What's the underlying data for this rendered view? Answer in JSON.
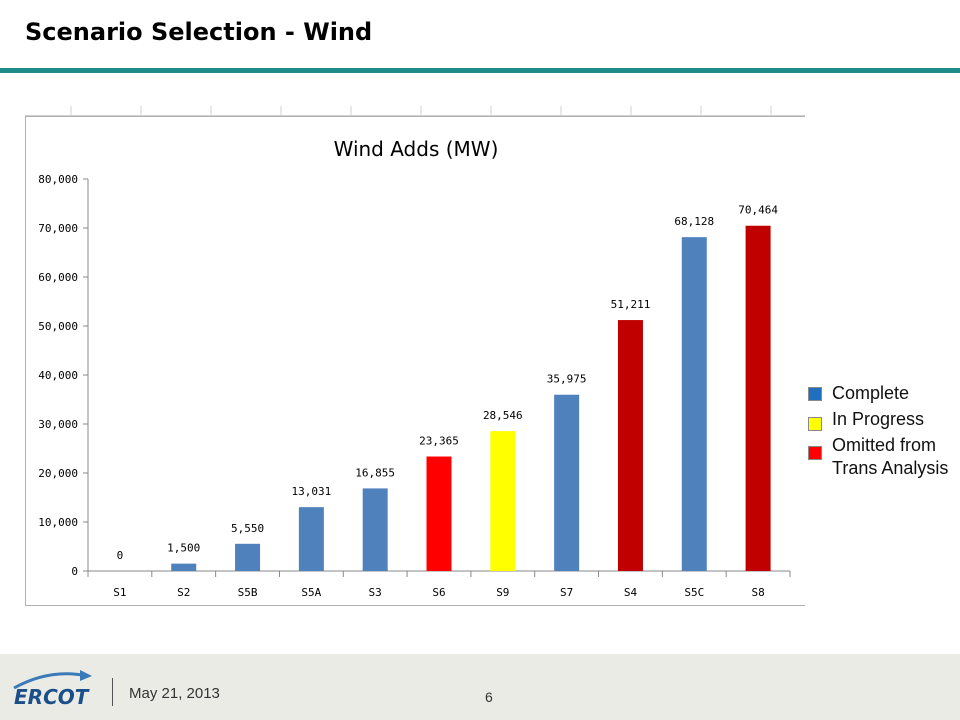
{
  "slide": {
    "title": "Scenario Selection - Wind",
    "date": "May 21, 2013",
    "page_number": "6",
    "logo_text": "ERCOT",
    "accent_color": "#1f8c8c"
  },
  "legend": {
    "items": [
      {
        "label": "Complete",
        "color": "#1f6fc0"
      },
      {
        "label": "In Progress",
        "color": "#ffff00"
      },
      {
        "label": "Omitted from Trans Analysis",
        "color": "#ff0000"
      }
    ]
  },
  "chart_data": {
    "type": "bar",
    "title": "Wind Adds (MW)",
    "xlabel": "",
    "ylabel": "",
    "ylim": [
      0,
      80000
    ],
    "yticks": [
      0,
      10000,
      20000,
      30000,
      40000,
      50000,
      60000,
      70000,
      80000
    ],
    "ytick_labels": [
      "0",
      "10,000",
      "20,000",
      "30,000",
      "40,000",
      "50,000",
      "60,000",
      "70,000",
      "80,000"
    ],
    "grid": false,
    "categories": [
      "S1",
      "S2",
      "S5B",
      "S5A",
      "S3",
      "S6",
      "S9",
      "S7",
      "S4",
      "S5C",
      "S8"
    ],
    "values": [
      0,
      1500,
      5550,
      13031,
      16855,
      23365,
      28546,
      35975,
      51211,
      68128,
      70464
    ],
    "data_labels": [
      "0",
      "1,500",
      "5,550",
      "13,031",
      "16,855",
      "23,365",
      "28,546",
      "35,975",
      "51,211",
      "68,128",
      "70,464"
    ],
    "bar_colors": [
      "#4f81bd",
      "#4f81bd",
      "#4f81bd",
      "#4f81bd",
      "#4f81bd",
      "#ff0000",
      "#ffff00",
      "#4f81bd",
      "#c00000",
      "#4f81bd",
      "#c00000"
    ]
  }
}
